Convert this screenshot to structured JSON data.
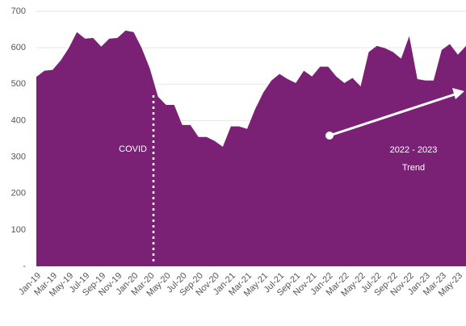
{
  "chart_data": {
    "type": "area",
    "color": "#7b2175",
    "grid": true,
    "categories": [
      "Jan-19",
      null,
      "Mar-19",
      null,
      "May-19",
      null,
      "Jul-19",
      null,
      "Sep-19",
      null,
      "Nov-19",
      null,
      "Jan-20",
      null,
      "Mar-20",
      null,
      "May-20",
      null,
      "Jul-20",
      null,
      "Sep-20",
      null,
      "Nov-20",
      null,
      "Jan-21",
      null,
      "Mar-21",
      null,
      "May-21",
      null,
      "Jul-21",
      null,
      "Sep-21",
      null,
      "Nov-21",
      null,
      "Jan-22",
      null,
      "Mar-22",
      null,
      "May-22",
      null,
      "Jul-22",
      null,
      "Sep-22",
      null,
      "Nov-22",
      null,
      "Jan-23",
      null,
      "Mar-23",
      null,
      "May-23",
      null
    ],
    "values": [
      520,
      537,
      539,
      565,
      599,
      643,
      625,
      627,
      603,
      625,
      627,
      647,
      643,
      599,
      543,
      466,
      443,
      443,
      388,
      388,
      355,
      355,
      344,
      328,
      384,
      384,
      377,
      432,
      477,
      510,
      528,
      514,
      503,
      537,
      521,
      548,
      548,
      521,
      503,
      517,
      494,
      588,
      605,
      599,
      588,
      570,
      632,
      514,
      510,
      510,
      594,
      610,
      581,
      605
    ],
    "ylim": [
      0,
      700
    ],
    "yticks": [
      {
        "value": 0,
        "label": "-"
      },
      100,
      200,
      300,
      400,
      500,
      600,
      700
    ],
    "annotations": [
      "COVID",
      "2022 - 2023",
      "Trend"
    ]
  }
}
